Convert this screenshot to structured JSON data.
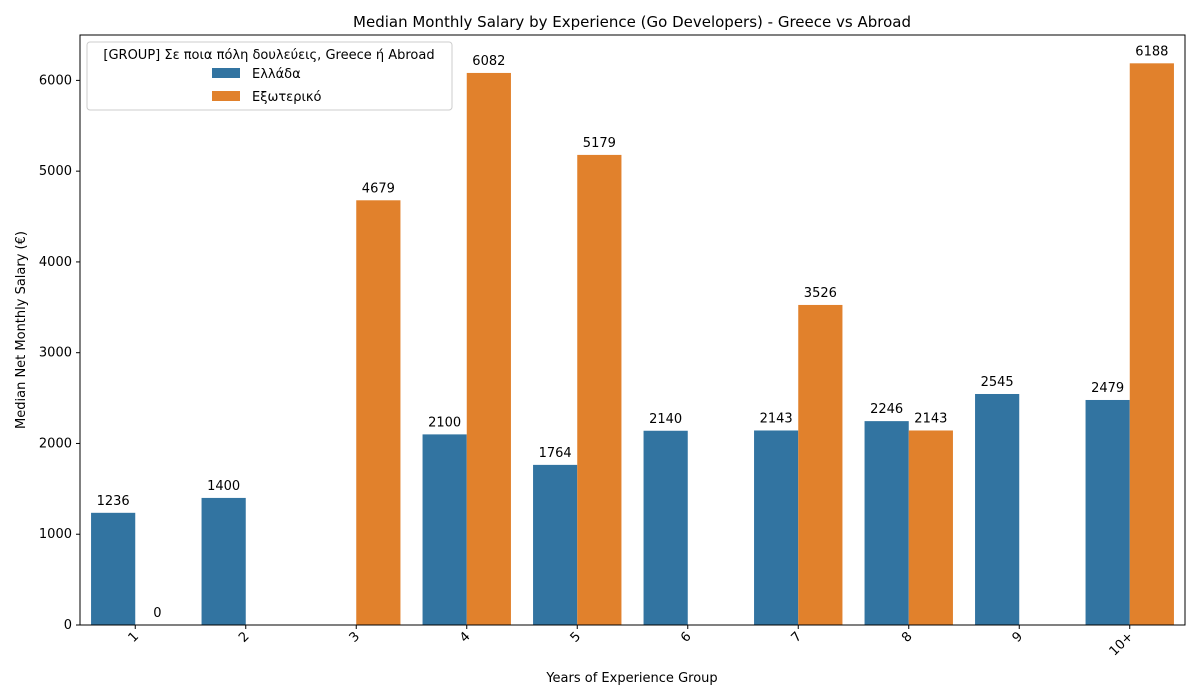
{
  "chart_data": {
    "type": "bar",
    "title": "Median Monthly Salary by Experience (Go Developers) - Greece vs Abroad",
    "xlabel": "Years of Experience Group",
    "ylabel": "Median Net Monthly Salary (€)",
    "categories": [
      "1",
      "2",
      "3",
      "4",
      "5",
      "6",
      "7",
      "8",
      "9",
      "10+"
    ],
    "series": [
      {
        "name": "Ελλάδα",
        "color": "#3274a1",
        "values": [
          1236,
          1400,
          null,
          2100,
          1764,
          2140,
          2143,
          2246,
          2545,
          2479
        ]
      },
      {
        "name": "Εξωτερικό",
        "color": "#e1812c",
        "values": [
          0,
          null,
          4679,
          6082,
          5179,
          null,
          3526,
          2143,
          null,
          6188
        ]
      }
    ],
    "ylim": [
      0,
      6500
    ],
    "yticks": [
      0,
      1000,
      2000,
      3000,
      4000,
      5000,
      6000
    ],
    "legend": {
      "title": "[GROUP] Σε ποια πόλη δουλεύεις, Greece ή Abroad",
      "placement": "top-left"
    },
    "grid": false
  }
}
